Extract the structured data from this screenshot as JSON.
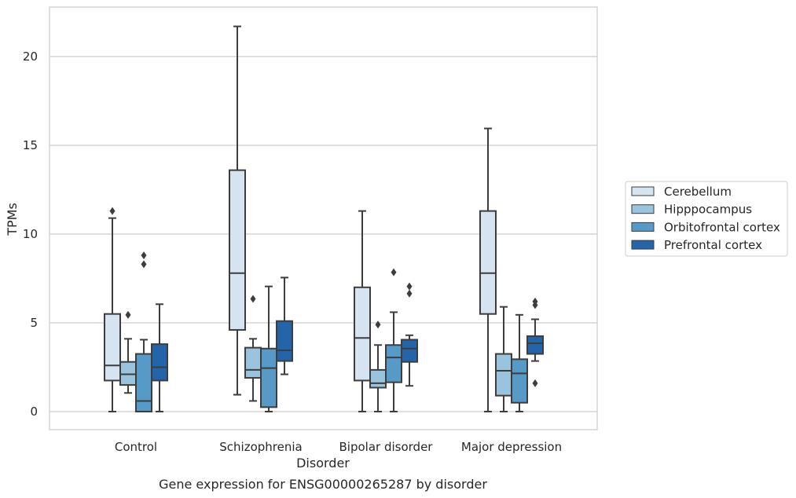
{
  "chart_data": {
    "type": "box",
    "xlabel": "Disorder",
    "ylabel": "TPMs",
    "caption": "Gene expression for ENSG00000265287 by disorder",
    "ylim": [
      -1,
      23
    ],
    "yticks": [
      "0",
      "5",
      "10",
      "15",
      "20"
    ],
    "grid": "horizontal",
    "legend_position": "right",
    "categories": [
      "Control",
      "Schizophrenia",
      "Bipolar disorder",
      "Major depression"
    ],
    "series": [
      {
        "name": "Cerebellum",
        "color": "#d6e4f2",
        "boxes": [
          {
            "whisker_low": 0,
            "q1": 1.75,
            "median": 2.6,
            "q3": 5.5,
            "whisker_high": 10.9,
            "outliers": [
              11.3
            ]
          },
          {
            "whisker_low": 0.95,
            "q1": 4.6,
            "median": 7.8,
            "q3": 13.6,
            "whisker_high": 21.7,
            "outliers": []
          },
          {
            "whisker_low": 0,
            "q1": 1.75,
            "median": 4.15,
            "q3": 7.0,
            "whisker_high": 11.3,
            "outliers": []
          },
          {
            "whisker_low": 0,
            "q1": 5.5,
            "median": 7.8,
            "q3": 11.3,
            "whisker_high": 15.95,
            "outliers": []
          }
        ]
      },
      {
        "name": "Hipppocampus",
        "color": "#9ac3de",
        "boxes": [
          {
            "whisker_low": 1.05,
            "q1": 1.5,
            "median": 2.1,
            "q3": 2.8,
            "whisker_high": 4.1,
            "outliers": [
              5.45
            ]
          },
          {
            "whisker_low": 0.6,
            "q1": 1.9,
            "median": 2.35,
            "q3": 3.6,
            "whisker_high": 4.1,
            "outliers": [
              6.35
            ]
          },
          {
            "whisker_low": 0,
            "q1": 1.35,
            "median": 1.6,
            "q3": 2.35,
            "whisker_high": 3.75,
            "outliers": [
              4.9
            ]
          },
          {
            "whisker_low": 0,
            "q1": 0.9,
            "median": 2.3,
            "q3": 3.25,
            "whisker_high": 5.9,
            "outliers": []
          }
        ]
      },
      {
        "name": "Orbitofrontal cortex",
        "color": "#5799c7",
        "boxes": [
          {
            "whisker_low": 0,
            "q1": 0,
            "median": 0.6,
            "q3": 3.25,
            "whisker_high": 4.05,
            "outliers": [
              8.3,
              8.8
            ]
          },
          {
            "whisker_low": 0,
            "q1": 0.25,
            "median": 2.45,
            "q3": 3.55,
            "whisker_high": 7.05,
            "outliers": []
          },
          {
            "whisker_low": 0,
            "q1": 1.65,
            "median": 3.05,
            "q3": 3.75,
            "whisker_high": 5.6,
            "outliers": [
              7.85
            ]
          },
          {
            "whisker_low": 0,
            "q1": 0.5,
            "median": 2.15,
            "q3": 2.95,
            "whisker_high": 5.45,
            "outliers": []
          }
        ]
      },
      {
        "name": "Prefrontal cortex",
        "color": "#2464a8",
        "boxes": [
          {
            "whisker_low": 0,
            "q1": 1.75,
            "median": 2.5,
            "q3": 3.8,
            "whisker_high": 6.05,
            "outliers": []
          },
          {
            "whisker_low": 2.1,
            "q1": 2.85,
            "median": 3.45,
            "q3": 5.1,
            "whisker_high": 7.55,
            "outliers": []
          },
          {
            "whisker_low": 1.45,
            "q1": 2.8,
            "median": 3.55,
            "q3": 4.05,
            "whisker_high": 4.3,
            "outliers": [
              6.65,
              7.05
            ]
          },
          {
            "whisker_low": 2.85,
            "q1": 3.25,
            "median": 3.85,
            "q3": 4.25,
            "whisker_high": 5.2,
            "outliers": [
              1.6,
              6.0,
              6.2
            ]
          }
        ]
      }
    ]
  }
}
